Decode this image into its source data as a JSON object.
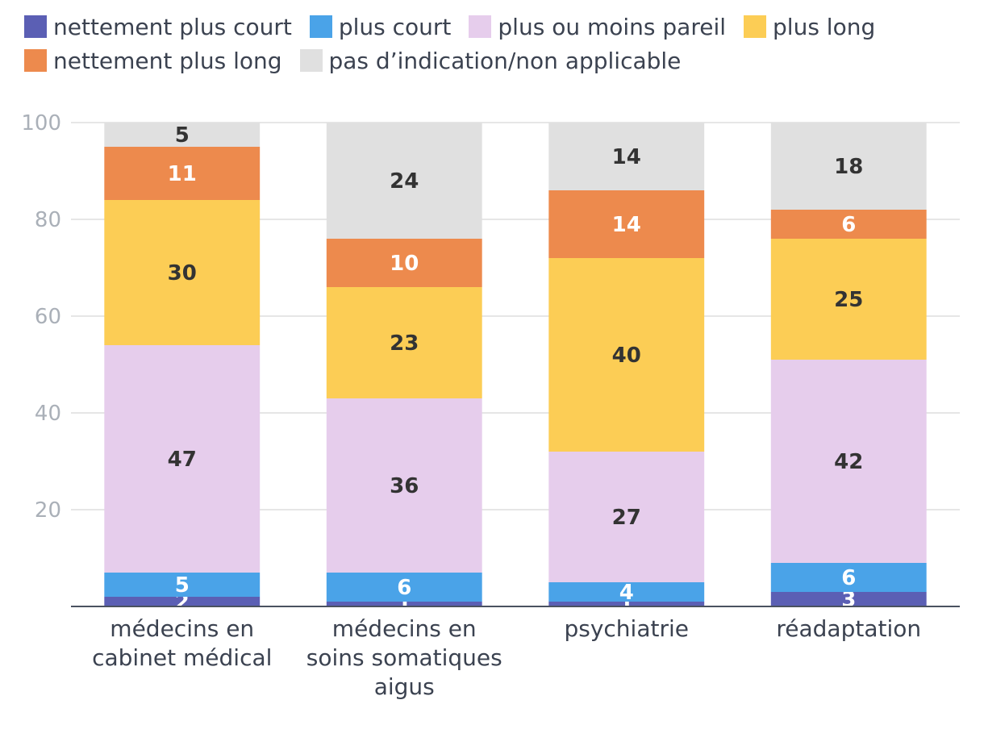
{
  "chart_data": {
    "type": "bar",
    "stacked": true,
    "title": "",
    "xlabel": "",
    "ylabel": "",
    "ylim": [
      0,
      100
    ],
    "yticks": [
      20,
      40,
      60,
      80,
      100
    ],
    "grid": true,
    "legend_position": "top",
    "categories": [
      [
        "médecins en",
        "cabinet médical"
      ],
      [
        "médecins en",
        "soins somatiques",
        "aigus"
      ],
      [
        "psychiatrie"
      ],
      [
        "réadaptation"
      ]
    ],
    "series": [
      {
        "name": "nettement plus court",
        "color": "#5b5fb4",
        "values": [
          2,
          1,
          1,
          3
        ]
      },
      {
        "name": "plus court",
        "color": "#4aa3e8",
        "values": [
          5,
          6,
          4,
          6
        ]
      },
      {
        "name": "plus ou moins pareil",
        "color": "#e6cdec",
        "values": [
          47,
          36,
          27,
          42
        ]
      },
      {
        "name": "plus long",
        "color": "#fccd55",
        "values": [
          30,
          23,
          40,
          25
        ]
      },
      {
        "name": "nettement plus long",
        "color": "#ed8a4d",
        "values": [
          11,
          10,
          14,
          6
        ]
      },
      {
        "name": "pas d’indication/non applicable",
        "color": "#e0e0e0",
        "values": [
          5,
          24,
          14,
          18
        ]
      }
    ]
  }
}
